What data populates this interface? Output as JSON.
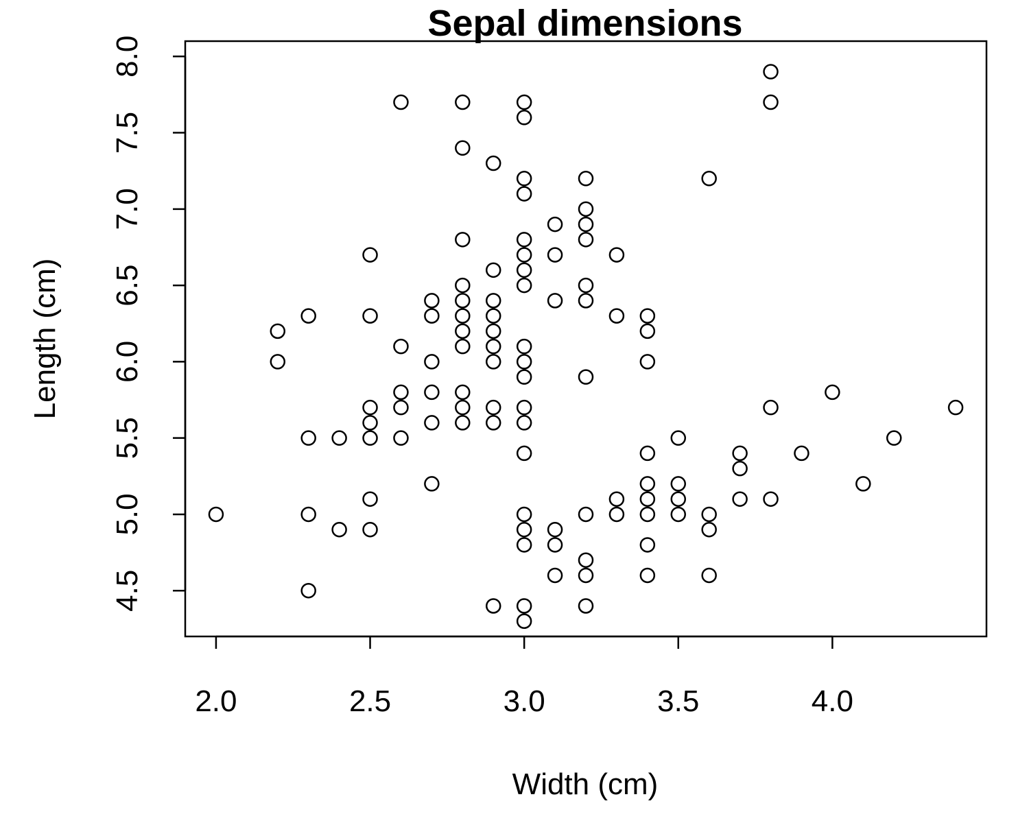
{
  "chart_data": {
    "type": "scatter",
    "title": "Sepal dimensions",
    "xlabel": "Width (cm)",
    "ylabel": "Length (cm)",
    "xlim": [
      1.9,
      4.5
    ],
    "ylim": [
      4.2,
      8.1
    ],
    "xticks": [
      2.0,
      2.5,
      3.0,
      3.5,
      4.0
    ],
    "xtick_labels": [
      "2.0",
      "2.5",
      "3.0",
      "3.5",
      "4.0"
    ],
    "yticks": [
      4.5,
      5.0,
      5.5,
      6.0,
      6.5,
      7.0,
      7.5,
      8.0
    ],
    "ytick_labels": [
      "4.5",
      "5.0",
      "5.5",
      "6.0",
      "6.5",
      "7.0",
      "7.5",
      "8.0"
    ],
    "grid": false,
    "marker": "open-circle",
    "colors": {
      "marker": "#000000",
      "frame": "#000000",
      "background": "#ffffff"
    },
    "points": [
      [
        2.0,
        5.0
      ],
      [
        2.2,
        6.2
      ],
      [
        2.2,
        6.0
      ],
      [
        2.3,
        6.3
      ],
      [
        2.3,
        5.5
      ],
      [
        2.3,
        5.0
      ],
      [
        2.3,
        4.5
      ],
      [
        2.4,
        5.5
      ],
      [
        2.4,
        4.9
      ],
      [
        2.5,
        6.7
      ],
      [
        2.5,
        6.3
      ],
      [
        2.5,
        5.7
      ],
      [
        2.5,
        5.6
      ],
      [
        2.5,
        5.5
      ],
      [
        2.5,
        5.1
      ],
      [
        2.5,
        4.9
      ],
      [
        2.6,
        7.7
      ],
      [
        2.6,
        6.1
      ],
      [
        2.6,
        5.8
      ],
      [
        2.6,
        5.7
      ],
      [
        2.6,
        5.5
      ],
      [
        2.7,
        6.4
      ],
      [
        2.7,
        6.3
      ],
      [
        2.7,
        6.0
      ],
      [
        2.7,
        5.8
      ],
      [
        2.7,
        5.6
      ],
      [
        2.7,
        5.2
      ],
      [
        2.8,
        7.7
      ],
      [
        2.8,
        7.4
      ],
      [
        2.8,
        6.8
      ],
      [
        2.8,
        6.5
      ],
      [
        2.8,
        6.4
      ],
      [
        2.8,
        6.3
      ],
      [
        2.8,
        6.2
      ],
      [
        2.8,
        6.1
      ],
      [
        2.8,
        5.8
      ],
      [
        2.8,
        5.7
      ],
      [
        2.8,
        5.6
      ],
      [
        2.9,
        7.3
      ],
      [
        2.9,
        6.6
      ],
      [
        2.9,
        6.4
      ],
      [
        2.9,
        6.3
      ],
      [
        2.9,
        6.2
      ],
      [
        2.9,
        6.1
      ],
      [
        2.9,
        6.0
      ],
      [
        2.9,
        5.7
      ],
      [
        2.9,
        5.6
      ],
      [
        2.9,
        4.4
      ],
      [
        3.0,
        7.7
      ],
      [
        3.0,
        7.6
      ],
      [
        3.0,
        7.2
      ],
      [
        3.0,
        7.1
      ],
      [
        3.0,
        6.8
      ],
      [
        3.0,
        6.7
      ],
      [
        3.0,
        6.6
      ],
      [
        3.0,
        6.5
      ],
      [
        3.0,
        6.1
      ],
      [
        3.0,
        6.0
      ],
      [
        3.0,
        5.9
      ],
      [
        3.0,
        5.7
      ],
      [
        3.0,
        5.6
      ],
      [
        3.0,
        5.4
      ],
      [
        3.0,
        5.0
      ],
      [
        3.0,
        4.9
      ],
      [
        3.0,
        4.8
      ],
      [
        3.0,
        4.4
      ],
      [
        3.0,
        4.3
      ],
      [
        3.1,
        6.9
      ],
      [
        3.1,
        6.7
      ],
      [
        3.1,
        6.4
      ],
      [
        3.1,
        4.9
      ],
      [
        3.1,
        4.8
      ],
      [
        3.1,
        4.6
      ],
      [
        3.2,
        7.2
      ],
      [
        3.2,
        7.0
      ],
      [
        3.2,
        6.9
      ],
      [
        3.2,
        6.8
      ],
      [
        3.2,
        6.5
      ],
      [
        3.2,
        6.4
      ],
      [
        3.2,
        5.9
      ],
      [
        3.2,
        5.0
      ],
      [
        3.2,
        4.7
      ],
      [
        3.2,
        4.6
      ],
      [
        3.2,
        4.4
      ],
      [
        3.3,
        6.7
      ],
      [
        3.3,
        6.3
      ],
      [
        3.3,
        5.1
      ],
      [
        3.3,
        5.0
      ],
      [
        3.4,
        6.3
      ],
      [
        3.4,
        6.2
      ],
      [
        3.4,
        6.0
      ],
      [
        3.4,
        5.4
      ],
      [
        3.4,
        5.2
      ],
      [
        3.4,
        5.1
      ],
      [
        3.4,
        5.0
      ],
      [
        3.4,
        4.8
      ],
      [
        3.4,
        4.6
      ],
      [
        3.5,
        5.5
      ],
      [
        3.5,
        5.2
      ],
      [
        3.5,
        5.1
      ],
      [
        3.5,
        5.0
      ],
      [
        3.6,
        7.2
      ],
      [
        3.6,
        5.0
      ],
      [
        3.6,
        4.9
      ],
      [
        3.6,
        4.6
      ],
      [
        3.7,
        5.4
      ],
      [
        3.7,
        5.3
      ],
      [
        3.7,
        5.1
      ],
      [
        3.8,
        7.9
      ],
      [
        3.8,
        7.7
      ],
      [
        3.8,
        5.7
      ],
      [
        3.8,
        5.1
      ],
      [
        3.9,
        5.4
      ],
      [
        4.0,
        5.8
      ],
      [
        4.1,
        5.2
      ],
      [
        4.2,
        5.5
      ],
      [
        4.4,
        5.7
      ]
    ]
  }
}
